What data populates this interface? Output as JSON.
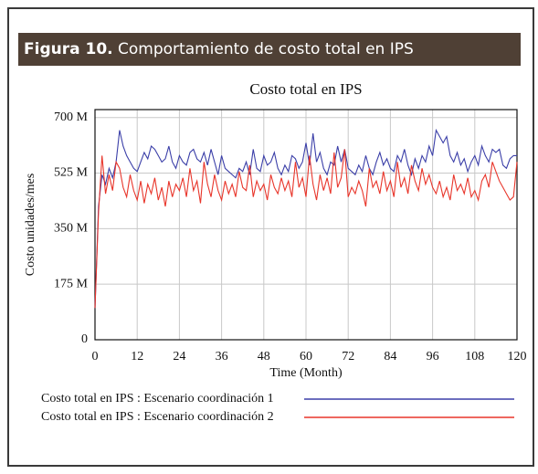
{
  "figure": {
    "label": "Figura 10.",
    "caption": "Comportamiento de costo total en IPS"
  },
  "chart_data": {
    "type": "line",
    "title": "Costo total en IPS",
    "xlabel": "Time (Month)",
    "ylabel": "Costo unidades/mes",
    "xlim": [
      0,
      120
    ],
    "xticks": [
      0,
      12,
      24,
      36,
      48,
      60,
      72,
      84,
      96,
      108,
      120
    ],
    "ylim": [
      0,
      725
    ],
    "yticks": [
      {
        "value": 0,
        "label": "0"
      },
      {
        "value": 175,
        "label": "175 M"
      },
      {
        "value": 350,
        "label": "350 M"
      },
      {
        "value": 525,
        "label": "525 M"
      },
      {
        "value": 700,
        "label": "700 M"
      }
    ],
    "grid": true,
    "x": [
      0,
      1,
      2,
      3,
      4,
      5,
      6,
      7,
      8,
      9,
      10,
      11,
      12,
      13,
      14,
      15,
      16,
      17,
      18,
      19,
      20,
      21,
      22,
      23,
      24,
      25,
      26,
      27,
      28,
      29,
      30,
      31,
      32,
      33,
      34,
      35,
      36,
      37,
      38,
      39,
      40,
      41,
      42,
      43,
      44,
      45,
      46,
      47,
      48,
      49,
      50,
      51,
      52,
      53,
      54,
      55,
      56,
      57,
      58,
      59,
      60,
      61,
      62,
      63,
      64,
      65,
      66,
      67,
      68,
      69,
      70,
      71,
      72,
      73,
      74,
      75,
      76,
      77,
      78,
      79,
      80,
      81,
      82,
      83,
      84,
      85,
      86,
      87,
      88,
      89,
      90,
      91,
      92,
      93,
      94,
      95,
      96,
      97,
      98,
      99,
      100,
      101,
      102,
      103,
      104,
      105,
      106,
      107,
      108,
      109,
      110,
      111,
      112,
      113,
      114,
      115,
      116,
      117,
      118,
      119,
      120
    ],
    "series": [
      {
        "name": "Costo total en IPS : Escenario coordinación 1",
        "color": "#3b3fa8",
        "values": [
          100,
          420,
          520,
          490,
          540,
          510,
          560,
          660,
          610,
          580,
          560,
          540,
          530,
          560,
          590,
          570,
          610,
          600,
          580,
          560,
          570,
          610,
          560,
          540,
          580,
          560,
          550,
          590,
          600,
          570,
          560,
          590,
          550,
          600,
          560,
          520,
          580,
          540,
          530,
          520,
          510,
          540,
          530,
          560,
          520,
          600,
          540,
          530,
          580,
          550,
          560,
          590,
          540,
          520,
          550,
          530,
          580,
          570,
          540,
          560,
          620,
          550,
          650,
          560,
          590,
          540,
          520,
          560,
          550,
          610,
          560,
          600,
          540,
          530,
          520,
          550,
          530,
          580,
          540,
          520,
          560,
          590,
          550,
          570,
          540,
          530,
          580,
          560,
          600,
          550,
          520,
          570,
          540,
          580,
          560,
          610,
          580,
          660,
          640,
          620,
          640,
          580,
          560,
          590,
          550,
          570,
          530,
          560,
          580,
          550,
          610,
          580,
          560,
          600,
          590,
          600,
          550,
          540,
          570,
          580,
          580
        ]
      },
      {
        "name": "Costo total en IPS : Escenario coordinación 2",
        "color": "#e8352a",
        "values": [
          100,
          400,
          580,
          460,
          520,
          470,
          560,
          540,
          480,
          450,
          520,
          470,
          440,
          500,
          430,
          490,
          460,
          510,
          440,
          480,
          420,
          500,
          450,
          490,
          470,
          510,
          450,
          540,
          470,
          500,
          430,
          560,
          490,
          450,
          520,
          470,
          440,
          500,
          460,
          490,
          450,
          530,
          480,
          470,
          550,
          450,
          500,
          470,
          490,
          440,
          520,
          480,
          460,
          510,
          470,
          500,
          450,
          560,
          480,
          510,
          450,
          580,
          490,
          440,
          520,
          470,
          510,
          460,
          590,
          480,
          510,
          600,
          450,
          480,
          460,
          500,
          470,
          420,
          540,
          480,
          500,
          460,
          530,
          470,
          500,
          450,
          560,
          480,
          510,
          460,
          550,
          500,
          470,
          540,
          490,
          520,
          480,
          460,
          500,
          450,
          480,
          440,
          520,
          470,
          490,
          460,
          510,
          450,
          470,
          440,
          500,
          520,
          480,
          560,
          530,
          500,
          480,
          460,
          440,
          450,
          560
        ]
      }
    ]
  }
}
